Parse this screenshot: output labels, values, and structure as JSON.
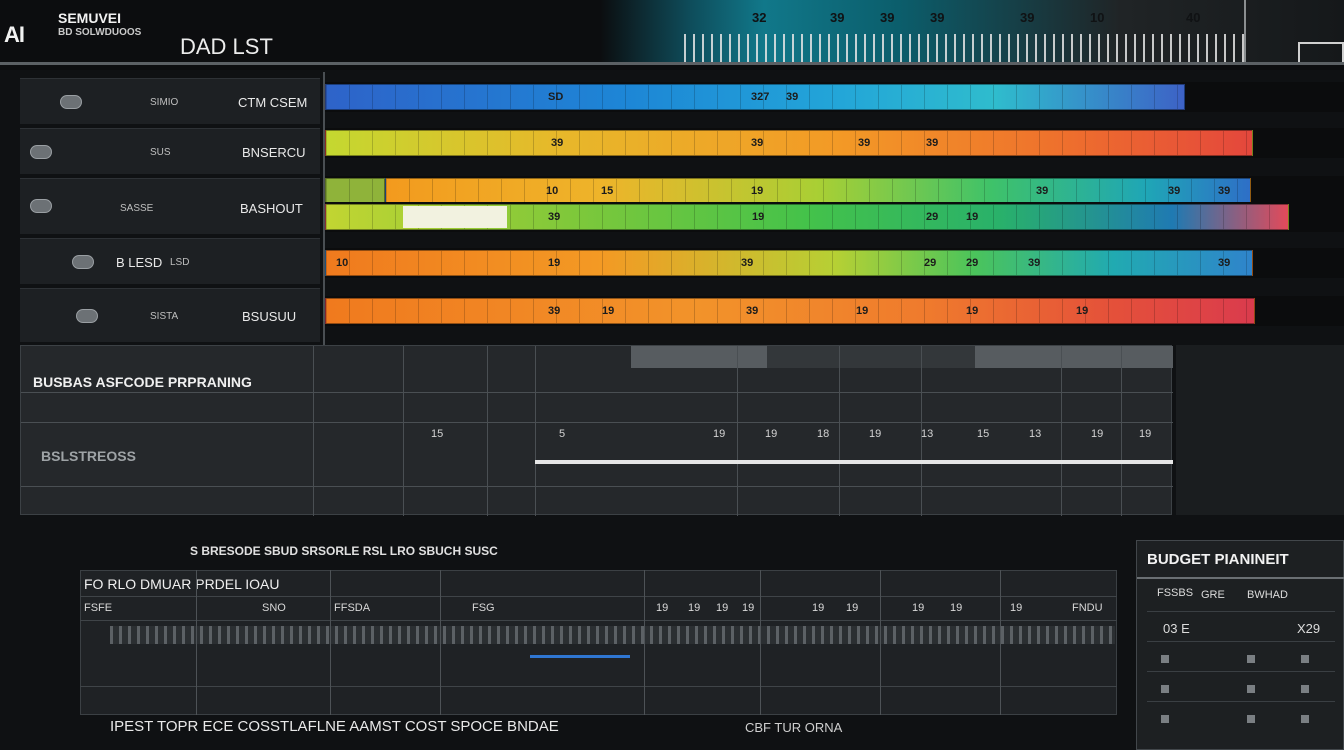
{
  "header": {
    "logo": "AI",
    "brand": "SEMUVEI",
    "brand_sub": "BD SOLWDUOOS",
    "title": "DAD LST",
    "labels": [
      "32",
      "39",
      "39",
      "39",
      "39",
      "10",
      "40"
    ]
  },
  "timeline": {
    "rows": [
      {
        "label": "CTM CSEM",
        "tag": "SIMIO",
        "icon": "toggle-icon"
      },
      {
        "label": "BNSERCU",
        "tag": "SUS",
        "icon": "toggle-icon"
      },
      {
        "label": "BASHOUT",
        "tag": "SASSE",
        "icon": "toggle-icon"
      },
      {
        "label": "B LESD",
        "tag": "LSD",
        "icon": "toggle-icon"
      },
      {
        "label": "BSUSUU",
        "tag": "SISTA",
        "icon": "toggle-icon"
      }
    ],
    "bars": [
      {
        "name": "blue",
        "labels": [
          "SD",
          "327",
          "39"
        ]
      },
      {
        "name": "warm",
        "labels": [
          "39",
          "39",
          "39",
          "39"
        ]
      },
      {
        "name": "rainbow-a",
        "labels": [
          "10",
          "15",
          "19",
          "39",
          "39",
          "39"
        ]
      },
      {
        "name": "green",
        "labels": [
          "39",
          "19",
          "29",
          "19"
        ]
      },
      {
        "name": "orange",
        "labels": [
          "10",
          "19",
          "39",
          "29",
          "29",
          "39",
          "39"
        ]
      },
      {
        "name": "red",
        "labels": [
          "39",
          "19",
          "39",
          "19",
          "19",
          "19"
        ]
      }
    ]
  },
  "roadmap": {
    "title": "BUSBAS ASFCODE PRPRANING",
    "subtitle": "BSLSTREOSS",
    "numbers": [
      "5",
      "19",
      "19",
      "18",
      "19",
      "13",
      "15",
      "13",
      "19",
      "19",
      "15"
    ]
  },
  "cost": {
    "header": "S BRESODE SBUD SRSORLE RSL LRO SBUCH SUSC",
    "title": "FO RLO DMUAR PRDEL IOAU",
    "numbers": [
      "FSFE",
      "SNO",
      "FFSDA",
      "FSG",
      "19",
      "19",
      "19",
      "19",
      "19",
      "19",
      "19",
      "19",
      "19",
      "FNDU"
    ],
    "footer": "IPEST TOPR ECE COSSTLAFLNE AAMST COST SPOCE BNDAE",
    "footer_2": "CBF TUR ORNA"
  },
  "budget": {
    "title": "BUDGET PIANINEIT",
    "row1_left": "FSSBS",
    "row1_mid": "GRE",
    "row1_right": "BWHAD",
    "value_left": "03 E",
    "value_right": "X29"
  },
  "colors": {
    "background": "#0f1113",
    "panel": "#25282b",
    "accent_teal": "#11788a"
  }
}
